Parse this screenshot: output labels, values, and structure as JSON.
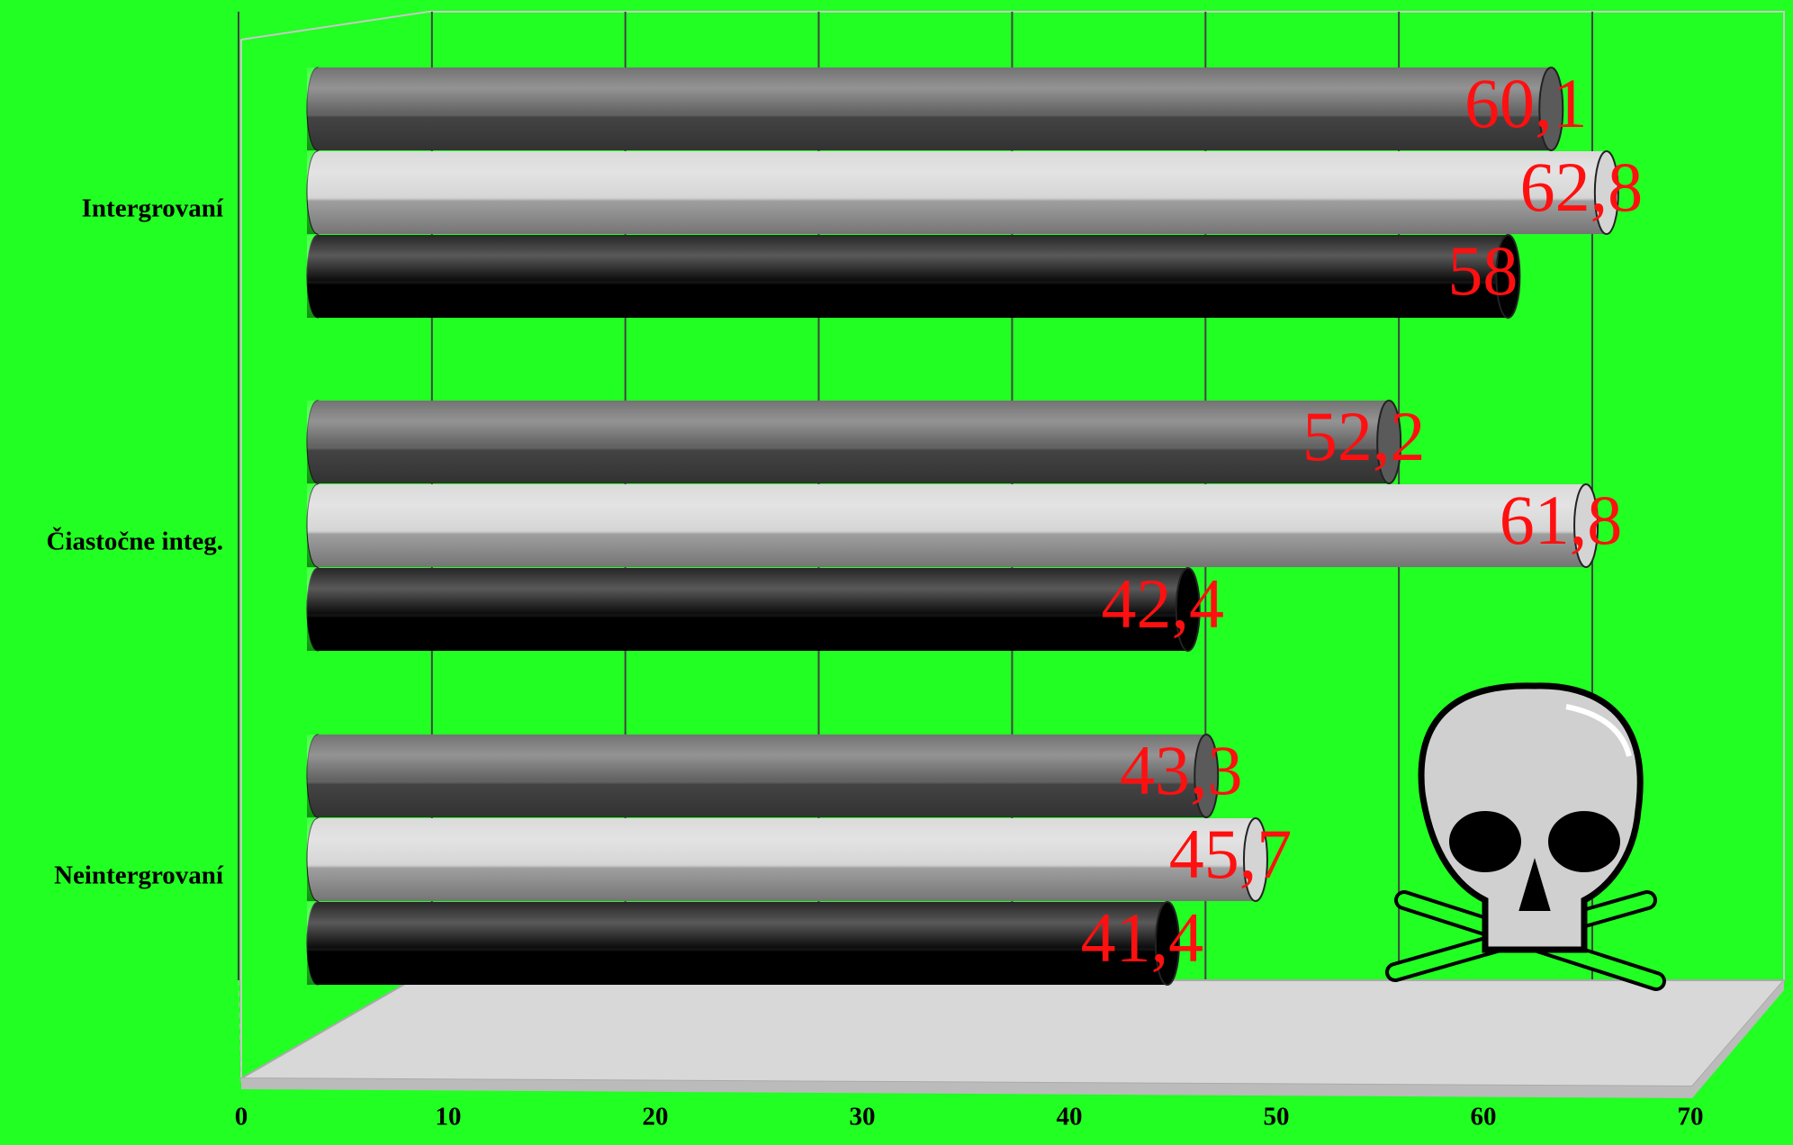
{
  "chart_data": {
    "type": "bar",
    "orientation": "horizontal",
    "categories": [
      "Intergrovaní",
      "Čiastočne integ.",
      "Neintergrovaní"
    ],
    "series": [
      {
        "color": "#5a5a5a",
        "values": [
          60.1,
          52.2,
          43.3
        ],
        "value_labels": [
          "60,1",
          "52,2",
          "43,3"
        ]
      },
      {
        "color": "#d4d4d4",
        "values": [
          62.8,
          61.8,
          45.7
        ],
        "value_labels": [
          "62,8",
          "61,8",
          "45,7"
        ]
      },
      {
        "color": "#000000",
        "values": [
          58,
          42.4,
          41.4
        ],
        "value_labels": [
          "58",
          "42,4",
          "41,4"
        ]
      }
    ],
    "xlim": [
      0,
      70
    ],
    "xticks": [
      0,
      10,
      20,
      30,
      40,
      50,
      60,
      70
    ],
    "grid": true,
    "value_label_color": "#ff1010",
    "background": "#22ff22"
  }
}
